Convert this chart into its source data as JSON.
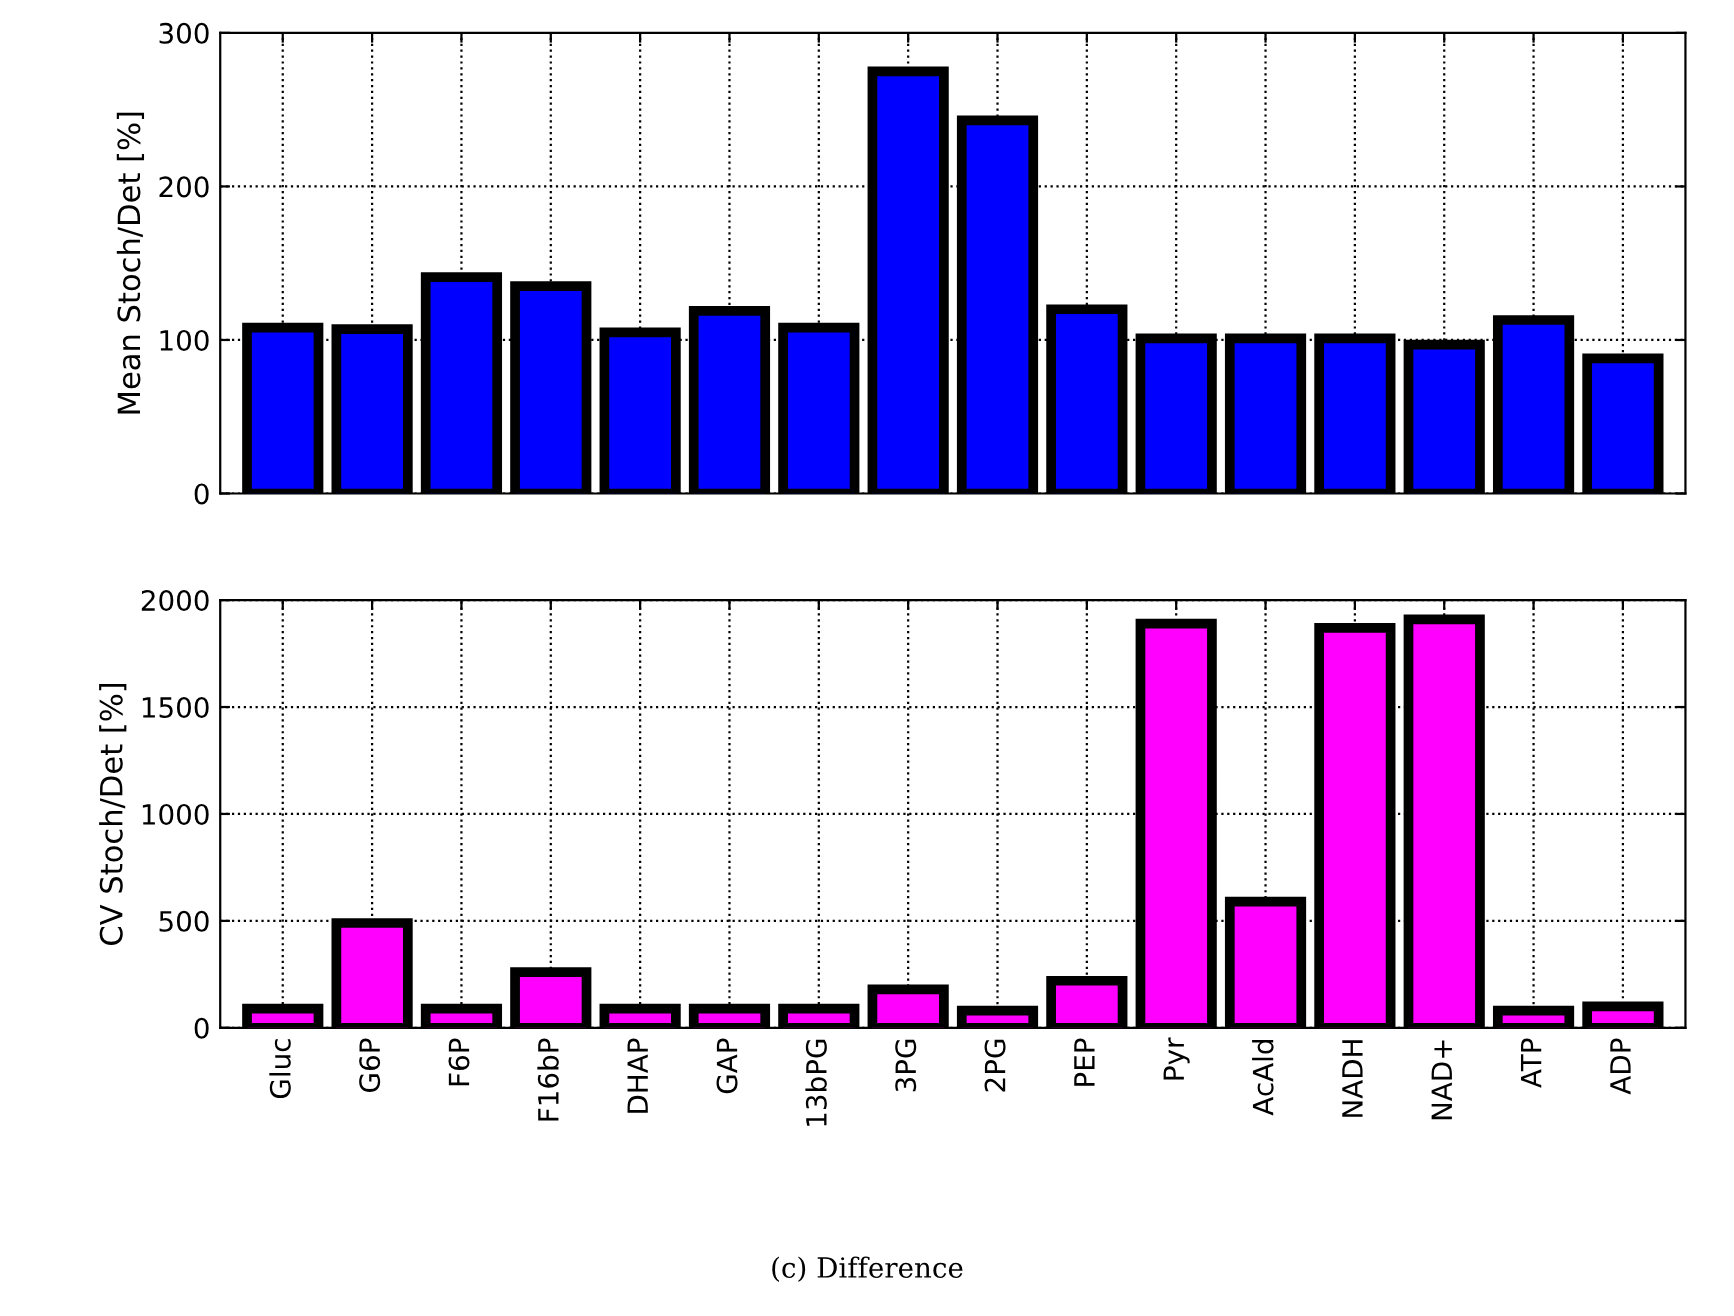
{
  "chart_data": [
    {
      "type": "bar",
      "ylabel": "Mean Stoch/Det [%]",
      "categories": [
        null,
        null,
        null,
        null,
        null,
        null,
        null,
        null,
        null,
        null,
        null,
        null,
        null,
        null,
        null,
        null
      ],
      "values": [
        108,
        107,
        141,
        135,
        105,
        119,
        108,
        275,
        243,
        120,
        101,
        101,
        101,
        97,
        113,
        88
      ],
      "color": "#0000ff",
      "ylim": [
        0,
        300
      ],
      "yticks": [
        0,
        100,
        200,
        300
      ],
      "grid": true,
      "tick_labels": "y"
    },
    {
      "type": "bar",
      "ylabel": "CV Stoch/Det [%]",
      "categories": [
        "Gluc",
        "G6P",
        "F6P",
        "F16bP",
        "DHAP",
        "GAP",
        "13bPG",
        "3PG",
        "2PG",
        "PEP",
        "Pyr",
        "AcAld",
        "NADH",
        "NAD+",
        "ATP",
        "ADP"
      ],
      "values": [
        90,
        490,
        90,
        260,
        90,
        90,
        90,
        180,
        80,
        220,
        1890,
        590,
        1870,
        1910,
        80,
        100
      ],
      "color": "#ff00ff",
      "ylim": [
        0,
        2000
      ],
      "yticks": [
        0,
        500,
        1000,
        1500,
        2000
      ],
      "grid": true,
      "annotations": [
        "(c) Difference"
      ]
    }
  ]
}
